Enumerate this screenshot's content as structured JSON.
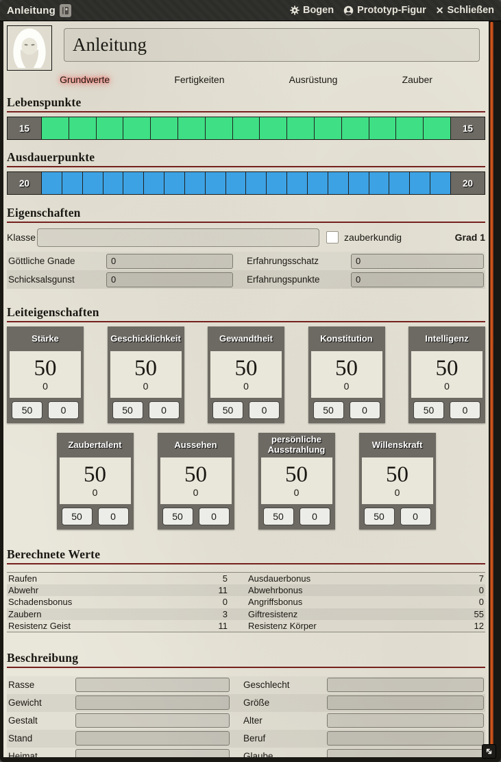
{
  "window": {
    "title": "Anleitung",
    "header_buttons": [
      {
        "icon": "gear-icon",
        "label": "Bogen"
      },
      {
        "icon": "user-icon",
        "label": "Prototyp-Figur"
      },
      {
        "icon": "close-icon",
        "label": "Schließen"
      }
    ]
  },
  "icons": {
    "close_glyph": "✕",
    "document_badge": "book-icon",
    "avatar": "hooded-figure-icon",
    "resize": "diagonal-resize-arrow-icon"
  },
  "colors": {
    "hp_green": "#3fdf85",
    "ap_blue": "#3da2e4",
    "box_gray": "#6d6a63",
    "parchment": "#e9e6da",
    "section_underline": "#75201d",
    "scrollbar_orange": "#e05c20"
  },
  "sheet": {
    "name": "Anleitung",
    "tabs": [
      {
        "label": "Grundwerte",
        "active": true
      },
      {
        "label": "Fertigkeiten",
        "active": false
      },
      {
        "label": "Ausrüstung",
        "active": false
      },
      {
        "label": "Zauber",
        "active": false
      }
    ],
    "lebenspunkte": {
      "title": "Lebenspunkte",
      "value": "15",
      "max": "15",
      "segments": 15,
      "color": "#3fdf85"
    },
    "ausdauerpunkte": {
      "title": "Ausdauerpunkte",
      "value": "20",
      "max": "20",
      "segments": 20,
      "color": "#3da2e4"
    },
    "eigenschaften": {
      "title": "Eigenschaften",
      "klasse_label": "Klasse",
      "klasse_value": "",
      "zauberkundig_label": "zauberkundig",
      "zauberkundig_checked": false,
      "grad_label": "Grad 1",
      "rows": [
        {
          "l1": "Göttliche Gnade",
          "v1": "0",
          "l2": "Erfahrungsschatz",
          "v2": "0"
        },
        {
          "l1": "Schicksalsgunst",
          "v1": "0",
          "l2": "Erfahrungspunkte",
          "v2": "0"
        }
      ]
    },
    "leiteigenschaften": {
      "title": "Leiteigenschaften",
      "row1": [
        {
          "name": "Stärke",
          "value": "50",
          "mod": "0",
          "input1": "50",
          "input2": "0"
        },
        {
          "name": "Geschicklichkeit",
          "value": "50",
          "mod": "0",
          "input1": "50",
          "input2": "0"
        },
        {
          "name": "Gewandtheit",
          "value": "50",
          "mod": "0",
          "input1": "50",
          "input2": "0"
        },
        {
          "name": "Konstitution",
          "value": "50",
          "mod": "0",
          "input1": "50",
          "input2": "0"
        },
        {
          "name": "Intelligenz",
          "value": "50",
          "mod": "0",
          "input1": "50",
          "input2": "0"
        }
      ],
      "row2": [
        {
          "name": "Zaubertalent",
          "value": "50",
          "mod": "0",
          "input1": "50",
          "input2": "0"
        },
        {
          "name": "Aussehen",
          "value": "50",
          "mod": "0",
          "input1": "50",
          "input2": "0"
        },
        {
          "name": "persönliche Ausstrahlung",
          "value": "50",
          "mod": "0",
          "input1": "50",
          "input2": "0"
        },
        {
          "name": "Willenskraft",
          "value": "50",
          "mod": "0",
          "input1": "50",
          "input2": "0"
        }
      ]
    },
    "berechnete_werte": {
      "title": "Berechnete Werte",
      "rows": [
        {
          "l1": "Raufen",
          "v1": "5",
          "l2": "Ausdauerbonus",
          "v2": "7"
        },
        {
          "l1": "Abwehr",
          "v1": "11",
          "l2": "Abwehrbonus",
          "v2": "0"
        },
        {
          "l1": "Schadensbonus",
          "v1": "0",
          "l2": "Angriffsbonus",
          "v2": "0"
        },
        {
          "l1": "Zaubern",
          "v1": "3",
          "l2": "Giftresistenz",
          "v2": "55"
        },
        {
          "l1": "Resistenz Geist",
          "v1": "11",
          "l2": "Resistenz Körper",
          "v2": "12"
        }
      ]
    },
    "beschreibung": {
      "title": "Beschreibung",
      "rows": [
        {
          "l1": "Rasse",
          "v1": "",
          "l2": "Geschlecht",
          "v2": ""
        },
        {
          "l1": "Gewicht",
          "v1": "",
          "l2": "Größe",
          "v2": ""
        },
        {
          "l1": "Gestalt",
          "v1": "",
          "l2": "Alter",
          "v2": ""
        },
        {
          "l1": "Stand",
          "v1": "",
          "l2": "Beruf",
          "v2": ""
        },
        {
          "l1": "Heimat",
          "v1": "",
          "l2": "Glaube",
          "v2": ""
        }
      ]
    }
  }
}
